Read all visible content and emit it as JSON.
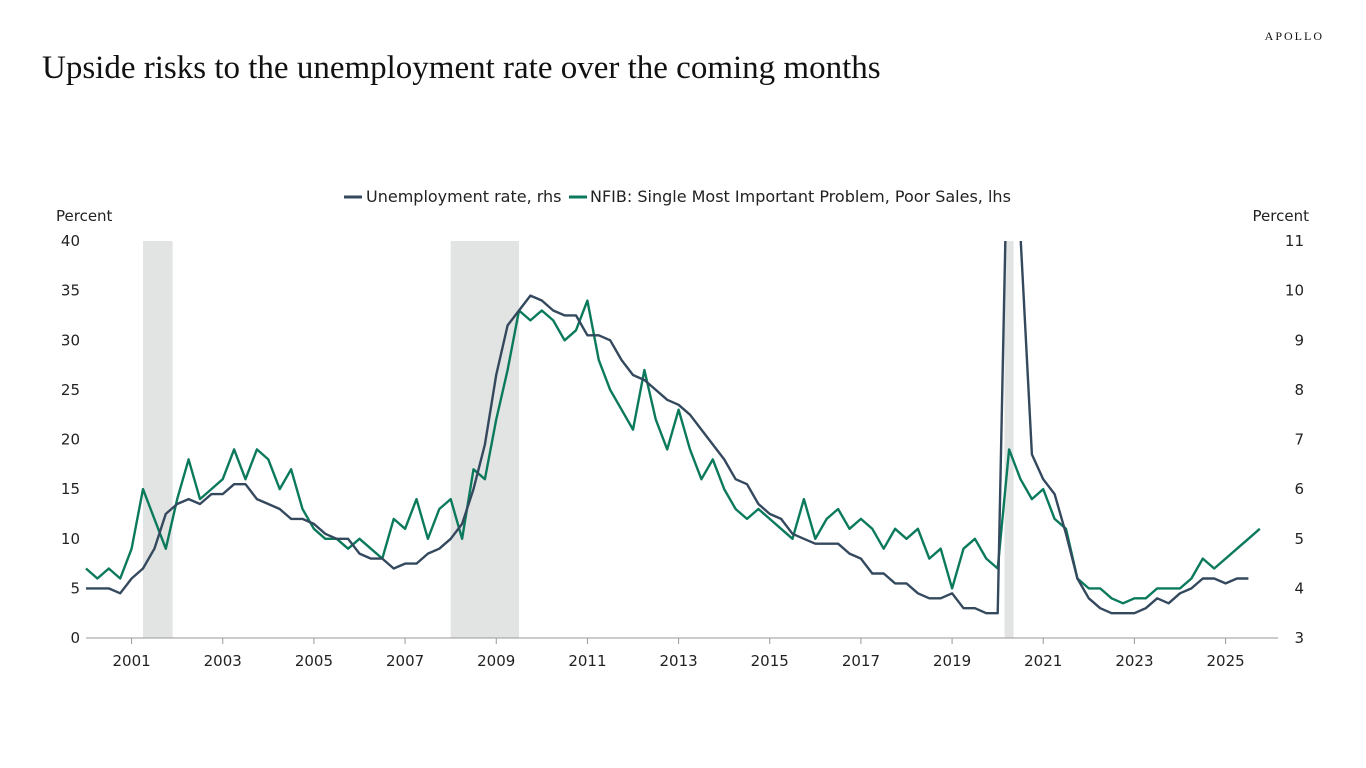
{
  "brand": "APOLLO",
  "chart_data": {
    "type": "line",
    "title": "Upside risks to the unemployment rate over the coming months",
    "ylabel_left": "Percent",
    "ylabel_right": "Percent",
    "ylim_left": [
      0,
      40
    ],
    "ylim_right": [
      3,
      11
    ],
    "xlim": [
      2000,
      2026.15
    ],
    "yticks_left": [
      "0",
      "5",
      "10",
      "15",
      "20",
      "25",
      "30",
      "35",
      "40"
    ],
    "yticks_right": [
      "3",
      "4",
      "5",
      "6",
      "7",
      "8",
      "9",
      "10",
      "11"
    ],
    "xticks": [
      "2001",
      "2003",
      "2005",
      "2007",
      "2009",
      "2011",
      "2013",
      "2015",
      "2017",
      "2019",
      "2021",
      "2023",
      "2025"
    ],
    "legend_position": "top-center",
    "recessions": [
      [
        2001.25,
        2001.9
      ],
      [
        2008.0,
        2009.5
      ],
      [
        2020.15,
        2020.35
      ]
    ],
    "colors": {
      "unemployment": "#34495e",
      "nfib": "#0b7a5c",
      "recession": "#e2e3e3"
    },
    "series": [
      {
        "name": "Unemployment rate, rhs",
        "axis": "right",
        "start": 2000.0,
        "step": 0.25,
        "values": [
          4.0,
          4.0,
          4.0,
          3.9,
          4.2,
          4.4,
          4.8,
          5.5,
          5.7,
          5.8,
          5.7,
          5.9,
          5.9,
          6.1,
          6.1,
          5.8,
          5.7,
          5.6,
          5.4,
          5.4,
          5.3,
          5.1,
          5.0,
          5.0,
          4.7,
          4.6,
          4.6,
          4.4,
          4.5,
          4.5,
          4.7,
          4.8,
          5.0,
          5.3,
          6.0,
          6.9,
          8.3,
          9.3,
          9.6,
          9.9,
          9.8,
          9.6,
          9.5,
          9.5,
          9.1,
          9.1,
          9.0,
          8.6,
          8.3,
          8.2,
          8.0,
          7.8,
          7.7,
          7.5,
          7.2,
          6.9,
          6.6,
          6.2,
          6.1,
          5.7,
          5.5,
          5.4,
          5.1,
          5.0,
          4.9,
          4.9,
          4.9,
          4.7,
          4.6,
          4.3,
          4.3,
          4.1,
          4.1,
          3.9,
          3.8,
          3.8,
          3.9,
          3.6,
          3.6,
          3.5,
          3.5,
          14.7,
          11.1,
          6.7,
          6.2,
          5.9,
          5.1,
          4.2,
          3.8,
          3.6,
          3.5,
          3.5,
          3.5,
          3.6,
          3.8,
          3.7,
          3.9,
          4.0,
          4.2,
          4.2,
          4.1,
          4.2,
          4.2
        ]
      },
      {
        "name": "NFIB: Single Most Important Problem, Poor Sales, lhs",
        "axis": "left",
        "start": 2000.0,
        "step": 0.25,
        "values": [
          7,
          6,
          7,
          6,
          9,
          15,
          12,
          9,
          14,
          18,
          14,
          15,
          16,
          19,
          16,
          19,
          18,
          15,
          17,
          13,
          11,
          10,
          10,
          9,
          10,
          9,
          8,
          12,
          11,
          14,
          10,
          13,
          14,
          10,
          17,
          16,
          22,
          27,
          33,
          32,
          33,
          32,
          30,
          31,
          34,
          28,
          25,
          23,
          21,
          27,
          22,
          19,
          23,
          19,
          16,
          18,
          15,
          13,
          12,
          13,
          12,
          11,
          10,
          14,
          10,
          12,
          13,
          11,
          12,
          11,
          9,
          11,
          10,
          11,
          8,
          9,
          5,
          9,
          10,
          8,
          7,
          19,
          16,
          14,
          15,
          12,
          11,
          6,
          5,
          5,
          4,
          3.5,
          4,
          4,
          5,
          5,
          5,
          6,
          8,
          7,
          8,
          9,
          10,
          11
        ]
      }
    ]
  }
}
